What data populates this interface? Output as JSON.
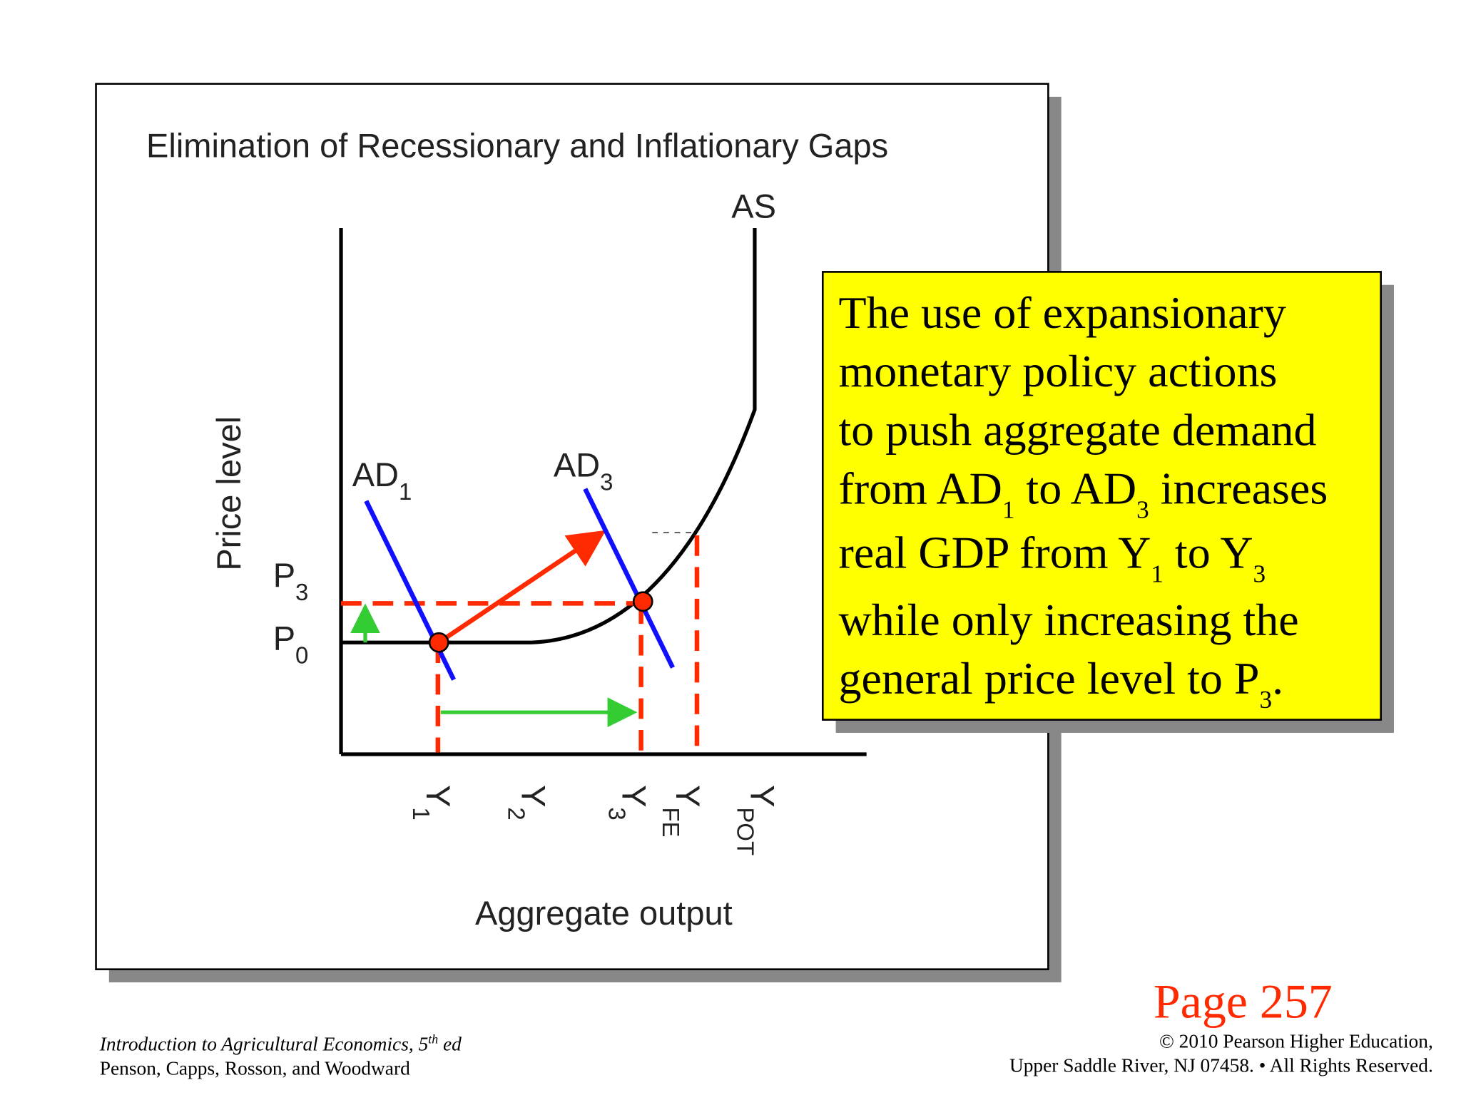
{
  "slide": {
    "chart": {
      "title": "Elimination of Recessionary and Inflationary Gaps",
      "y_axis_label": "Price level",
      "x_axis_label": "Aggregate output",
      "as_label": [
        "AS"
      ],
      "ad1_label": [
        "AD",
        "1"
      ],
      "ad3_label": [
        "AD",
        "3"
      ],
      "price_labels": [
        [
          "P",
          "3"
        ],
        [
          "P",
          "0"
        ]
      ],
      "output_labels": [
        [
          "Y",
          "1"
        ],
        [
          "Y",
          "2"
        ],
        [
          "Y",
          "3"
        ],
        [
          "Y",
          "FE"
        ],
        [
          "Y",
          "POT"
        ]
      ]
    },
    "callout": {
      "lines": [
        [
          "The use of expansionary"
        ],
        [
          "monetary policy actions"
        ],
        [
          "to push aggregate demand"
        ],
        [
          "from AD",
          "1",
          " to AD",
          "3",
          " increases"
        ],
        [
          "real GDP from Y",
          "1",
          " to Y",
          "3"
        ],
        [
          "while only increasing the"
        ],
        [
          "general price level to P",
          "3",
          "."
        ]
      ]
    },
    "page": "Page 257",
    "footer": {
      "book": [
        "Introduction to Agricultural Economics, 5",
        "th",
        " ed"
      ],
      "authors": "Penson, Capps, Rosson, and Woodward",
      "copyright": [
        "© 2010 Pearson Higher Education,",
        "Upper Saddle River, NJ 07458. • All Rights Reserved."
      ]
    }
  }
}
